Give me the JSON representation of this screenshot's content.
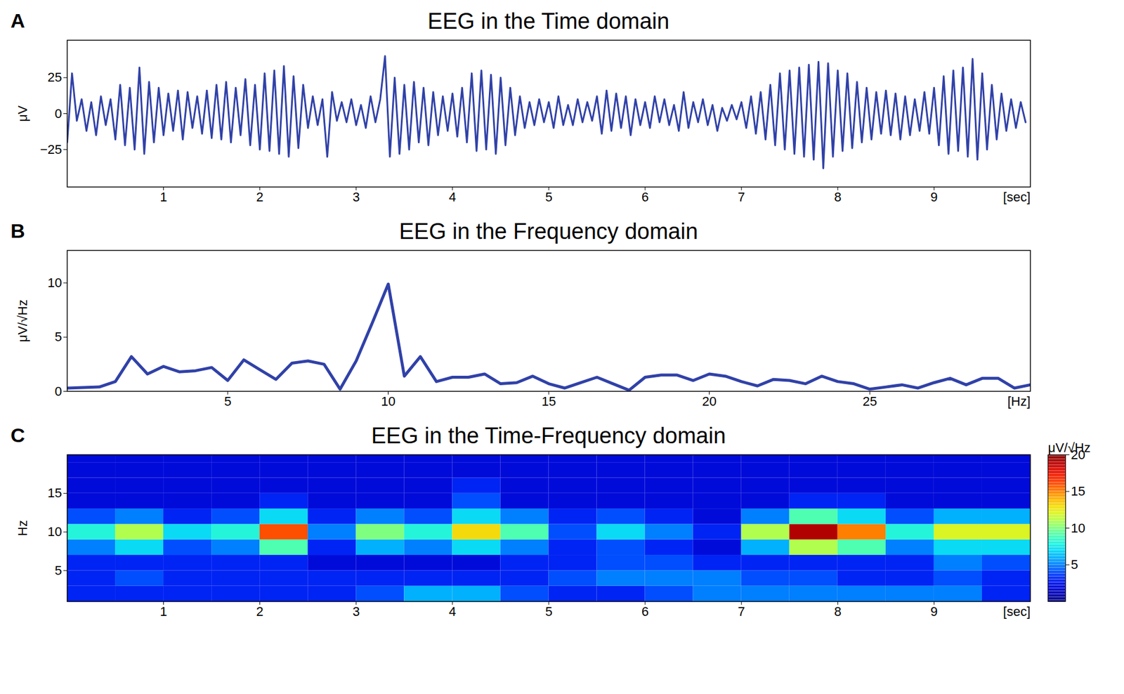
{
  "chart_data": [
    {
      "type": "line",
      "panel_label": "A",
      "title": "EEG in the Time domain",
      "y_label": "μV",
      "x_label": "[sec]",
      "color": "#3041a8",
      "xlim": [
        0,
        10
      ],
      "xticks": [
        1,
        2,
        3,
        4,
        5,
        6,
        7,
        8,
        9
      ],
      "ylim": [
        -51,
        51
      ],
      "yticks": [
        -25,
        0,
        25
      ],
      "x": [
        0,
        0.05,
        0.1,
        0.15,
        0.2,
        0.25,
        0.3,
        0.35,
        0.4,
        0.45,
        0.5,
        0.55,
        0.6,
        0.65,
        0.7,
        0.75,
        0.8,
        0.85,
        0.9,
        0.95,
        1,
        1.05,
        1.1,
        1.15,
        1.2,
        1.25,
        1.3,
        1.35,
        1.4,
        1.45,
        1.5,
        1.55,
        1.6,
        1.65,
        1.7,
        1.75,
        1.8,
        1.85,
        1.9,
        1.95,
        2,
        2.05,
        2.1,
        2.15,
        2.2,
        2.25,
        2.3,
        2.35,
        2.4,
        2.45,
        2.5,
        2.55,
        2.6,
        2.65,
        2.7,
        2.75,
        2.8,
        2.85,
        2.9,
        2.95,
        3,
        3.05,
        3.1,
        3.15,
        3.2,
        3.25,
        3.3,
        3.35,
        3.4,
        3.45,
        3.5,
        3.55,
        3.6,
        3.65,
        3.7,
        3.75,
        3.8,
        3.85,
        3.9,
        3.95,
        4,
        4.05,
        4.1,
        4.15,
        4.2,
        4.25,
        4.3,
        4.35,
        4.4,
        4.45,
        4.5,
        4.55,
        4.6,
        4.65,
        4.7,
        4.75,
        4.8,
        4.85,
        4.9,
        4.95,
        5,
        5.05,
        5.1,
        5.15,
        5.2,
        5.25,
        5.3,
        5.35,
        5.4,
        5.45,
        5.5,
        5.55,
        5.6,
        5.65,
        5.7,
        5.75,
        5.8,
        5.85,
        5.9,
        5.95,
        6,
        6.05,
        6.1,
        6.15,
        6.2,
        6.25,
        6.3,
        6.35,
        6.4,
        6.45,
        6.5,
        6.55,
        6.6,
        6.65,
        6.7,
        6.75,
        6.8,
        6.85,
        6.9,
        6.95,
        7,
        7.05,
        7.1,
        7.15,
        7.2,
        7.25,
        7.3,
        7.35,
        7.4,
        7.45,
        7.5,
        7.55,
        7.6,
        7.65,
        7.7,
        7.75,
        7.8,
        7.85,
        7.9,
        7.95,
        8,
        8.05,
        8.1,
        8.15,
        8.2,
        8.25,
        8.3,
        8.35,
        8.4,
        8.45,
        8.5,
        8.55,
        8.6,
        8.65,
        8.7,
        8.75,
        8.8,
        8.85,
        8.9,
        8.95,
        9,
        9.05,
        9.1,
        9.15,
        9.2,
        9.25,
        9.3,
        9.35,
        9.4,
        9.45,
        9.5,
        9.55,
        9.6,
        9.65,
        9.7,
        9.75,
        9.8,
        9.85,
        9.9,
        9.95
      ],
      "values": [
        -20,
        28,
        -5,
        10,
        -12,
        8,
        -15,
        12,
        -8,
        10,
        -18,
        20,
        -22,
        18,
        -25,
        32,
        -28,
        22,
        -20,
        18,
        -15,
        14,
        -12,
        16,
        -18,
        15,
        -10,
        12,
        -14,
        16,
        -17,
        20,
        -18,
        22,
        -20,
        18,
        -15,
        24,
        -22,
        20,
        -25,
        28,
        -26,
        30,
        -28,
        33,
        -30,
        26,
        -24,
        20,
        -10,
        12,
        -8,
        10,
        -30,
        15,
        -5,
        8,
        -6,
        10,
        -8,
        6,
        -10,
        12,
        -6,
        10,
        40,
        -30,
        25,
        -28,
        20,
        -25,
        22,
        -20,
        18,
        -22,
        15,
        -15,
        12,
        -12,
        14,
        -16,
        18,
        -20,
        28,
        -26,
        30,
        -25,
        27,
        -28,
        25,
        -22,
        18,
        -15,
        12,
        -10,
        8,
        -8,
        10,
        -6,
        8,
        -10,
        12,
        -8,
        6,
        -8,
        10,
        -6,
        8,
        -5,
        12,
        -14,
        16,
        -12,
        14,
        -10,
        12,
        -15,
        10,
        -8,
        8,
        -10,
        12,
        -6,
        10,
        -8,
        6,
        -12,
        15,
        -10,
        8,
        -6,
        10,
        -8,
        6,
        -12,
        4,
        -5,
        6,
        -4,
        8,
        -10,
        12,
        -14,
        15,
        -18,
        20,
        -22,
        28,
        -25,
        30,
        -28,
        32,
        -30,
        34,
        -32,
        36,
        -38,
        35,
        -30,
        30,
        -26,
        28,
        -24,
        22,
        -20,
        18,
        -18,
        15,
        -14,
        16,
        -15,
        14,
        -18,
        12,
        -15,
        10,
        -12,
        15,
        -14,
        18,
        -22,
        26,
        -28,
        30,
        -26,
        32,
        -30,
        38,
        -32,
        28,
        -25,
        20,
        -18,
        14,
        -12,
        10,
        -10,
        8,
        -6
      ]
    },
    {
      "type": "line",
      "panel_label": "B",
      "title": "EEG in the Frequency domain",
      "y_label": "μV/√Hz",
      "x_label": "[Hz]",
      "color": "#3041a8",
      "xlim": [
        0,
        30
      ],
      "xticks": [
        5,
        10,
        15,
        20,
        25
      ],
      "ylim": [
        0,
        13
      ],
      "yticks": [
        0,
        5,
        10
      ],
      "x": [
        0,
        0.5,
        1,
        1.5,
        2,
        2.5,
        3,
        3.5,
        4,
        4.5,
        5,
        5.5,
        6,
        6.5,
        7,
        7.5,
        8,
        8.5,
        9,
        9.5,
        10,
        10.5,
        11,
        11.5,
        12,
        12.5,
        13,
        13.5,
        14,
        14.5,
        15,
        15.5,
        16,
        16.5,
        17,
        17.5,
        18,
        18.5,
        19,
        19.5,
        20,
        20.5,
        21,
        21.5,
        22,
        22.5,
        23,
        23.5,
        24,
        24.5,
        25,
        25.5,
        26,
        26.5,
        27,
        27.5,
        28,
        28.5,
        29,
        29.5,
        30
      ],
      "values": [
        0.3,
        0.35,
        0.4,
        0.9,
        3.2,
        1.6,
        2.3,
        1.8,
        1.9,
        2.2,
        1.0,
        2.9,
        2.0,
        1.1,
        2.6,
        2.8,
        2.5,
        0.2,
        2.8,
        6.3,
        9.9,
        1.4,
        3.2,
        0.9,
        1.3,
        1.3,
        1.6,
        0.7,
        0.8,
        1.4,
        0.7,
        0.3,
        0.8,
        1.3,
        0.7,
        0.1,
        1.3,
        1.5,
        1.5,
        1.0,
        1.6,
        1.4,
        0.9,
        0.5,
        1.1,
        1.0,
        0.7,
        1.4,
        0.9,
        0.7,
        0.2,
        0.4,
        0.6,
        0.3,
        0.8,
        1.2,
        0.6,
        1.2,
        1.2,
        0.3,
        0.6
      ]
    },
    {
      "type": "heatmap",
      "panel_label": "C",
      "title": "EEG in the Time-Frequency domain",
      "y_label": "Hz",
      "x_label": "[sec]",
      "xlim": [
        0,
        10
      ],
      "xticks": [
        1,
        2,
        3,
        4,
        5,
        6,
        7,
        8,
        9
      ],
      "ylim": [
        1,
        20
      ],
      "yticks": [
        5,
        10,
        15
      ],
      "x": [
        0.25,
        0.75,
        1.25,
        1.75,
        2.25,
        2.75,
        3.25,
        3.75,
        4.25,
        4.75,
        5.25,
        5.75,
        6.25,
        6.75,
        7.25,
        7.75,
        8.25,
        8.75,
        9.25,
        9.75
      ],
      "y": [
        2,
        4,
        6,
        8,
        10,
        12,
        14,
        16,
        18,
        20
      ],
      "cells": [
        [
          3,
          3,
          3,
          3,
          3,
          3,
          4,
          6,
          6,
          4,
          3,
          3,
          4,
          5,
          5,
          5,
          5,
          5,
          5,
          3
        ],
        [
          3,
          4,
          3,
          3,
          3,
          3,
          3,
          3,
          3,
          3,
          4,
          5,
          5,
          5,
          4,
          4,
          3,
          3,
          4,
          3
        ],
        [
          3,
          3,
          3,
          3,
          3,
          2,
          2,
          2,
          2,
          3,
          3,
          4,
          4,
          3,
          3,
          3,
          3,
          3,
          5,
          4
        ],
        [
          5,
          7,
          4,
          5,
          9,
          3,
          6,
          5,
          7,
          5,
          3,
          4,
          3,
          2,
          6,
          11,
          9,
          5,
          7,
          7
        ],
        [
          8,
          11,
          7,
          8,
          16,
          5,
          10,
          8,
          13,
          9,
          4,
          7,
          5,
          3,
          11,
          19,
          15,
          8,
          12,
          12
        ],
        [
          4,
          5,
          3,
          4,
          7,
          3,
          5,
          4,
          7,
          5,
          3,
          4,
          3,
          2,
          5,
          9,
          7,
          4,
          6,
          6
        ],
        [
          2,
          2,
          2,
          2,
          3,
          2,
          2,
          2,
          4,
          2,
          2,
          2,
          2,
          2,
          2,
          3,
          3,
          2,
          2,
          2
        ],
        [
          2,
          2,
          2,
          2,
          2,
          2,
          2,
          2,
          3,
          2,
          2,
          2,
          2,
          2,
          2,
          2,
          2,
          2,
          2,
          2
        ],
        [
          2,
          2,
          2,
          2,
          2,
          2,
          2,
          2,
          2,
          2,
          2,
          2,
          2,
          2,
          2,
          2,
          2,
          2,
          2,
          2
        ],
        [
          2,
          2,
          2,
          2,
          2,
          2,
          2,
          2,
          2,
          2,
          2,
          2,
          2,
          2,
          2,
          2,
          2,
          2,
          2,
          2
        ]
      ],
      "colorbar_label": "μV/√Hz",
      "colorbar_range": [
        0,
        20
      ],
      "colorbar_ticks": [
        5,
        10,
        15,
        20
      ]
    }
  ]
}
